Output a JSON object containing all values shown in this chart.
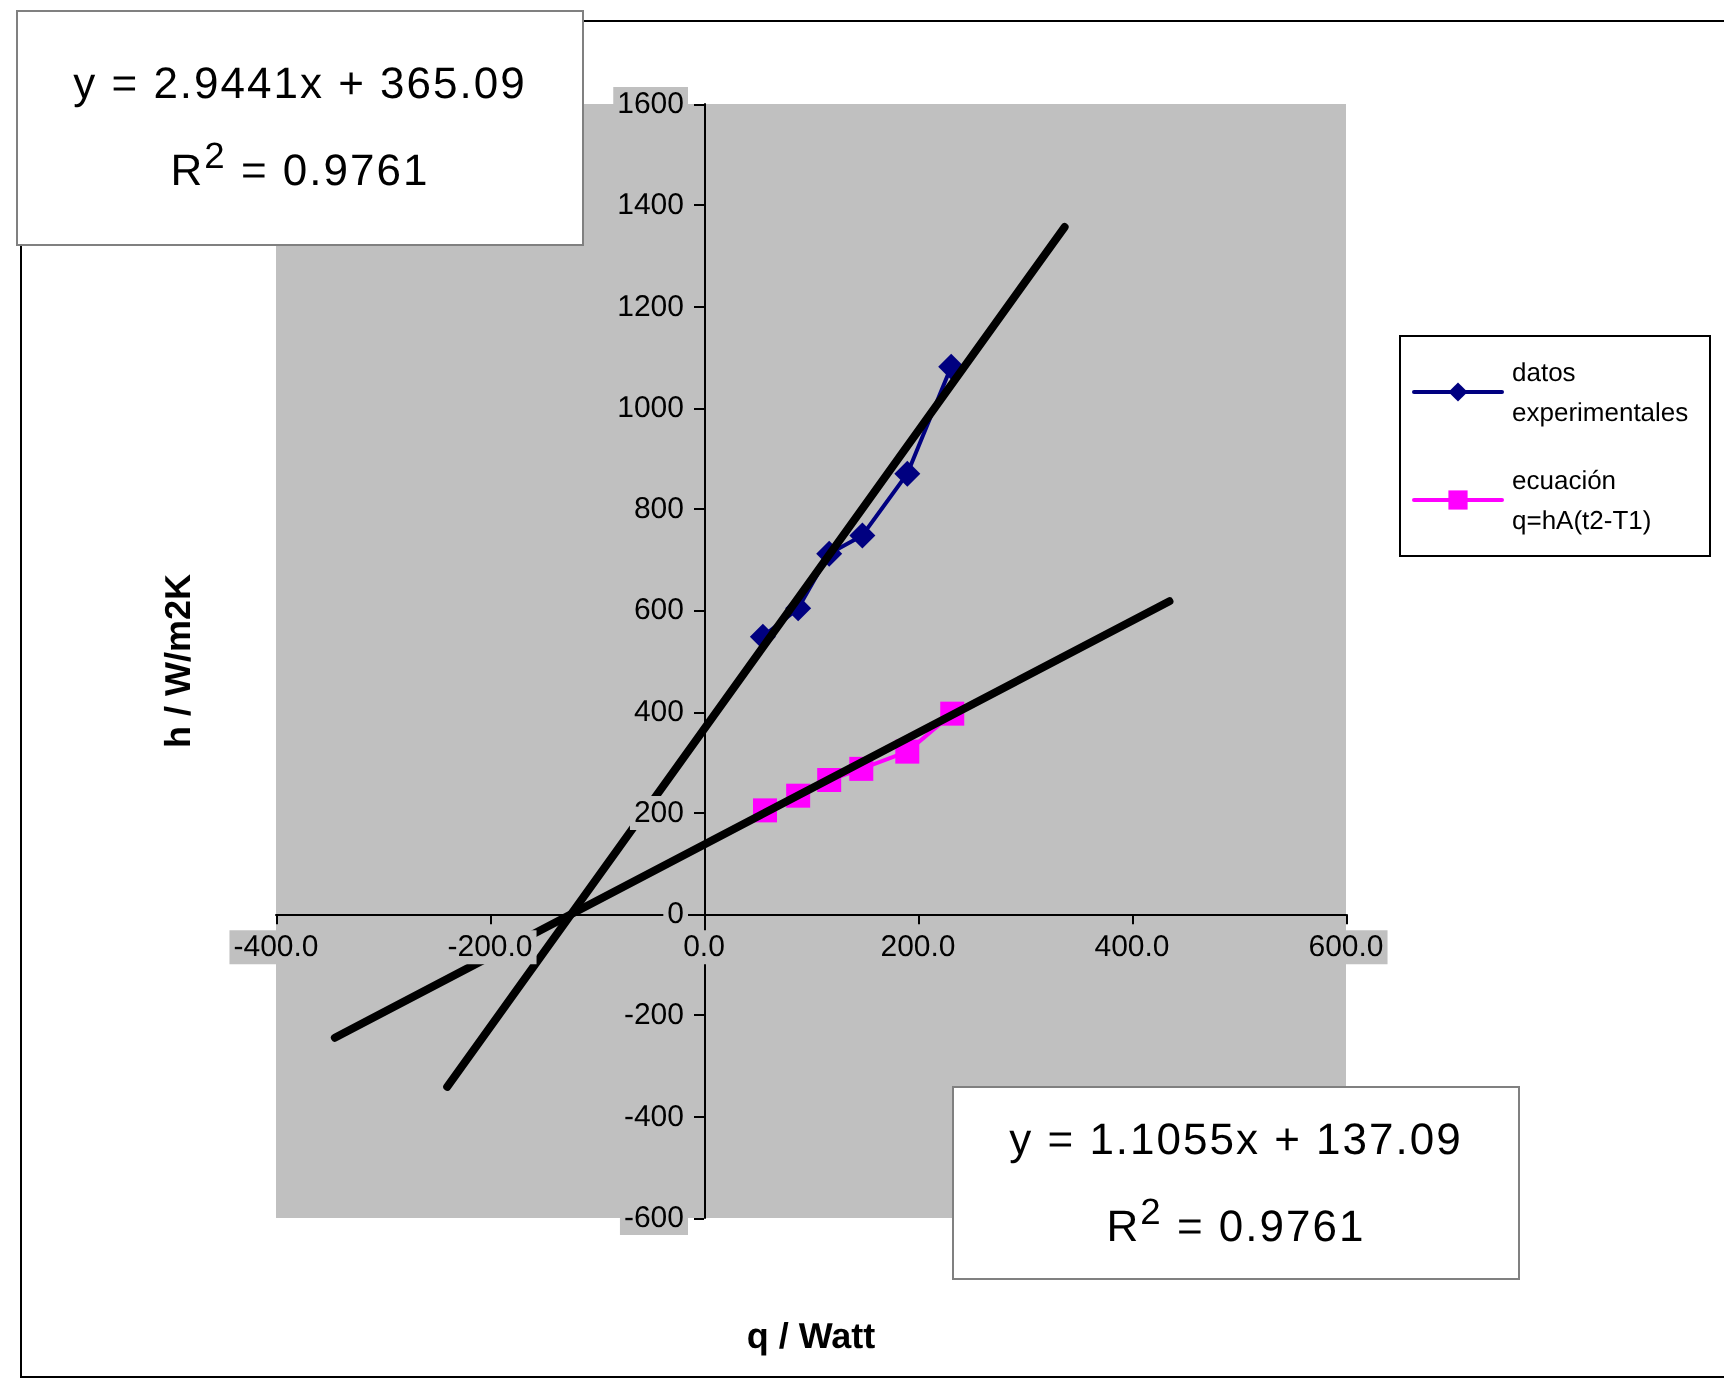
{
  "chart_data": {
    "type": "line",
    "xlabel": "q / Watt",
    "ylabel": "h / W/m2K",
    "xlim": [
      -400,
      600
    ],
    "xticks": [
      {
        "value": -400,
        "label": "-400.0"
      },
      {
        "value": -200,
        "label": "-200.0"
      },
      {
        "value": 0,
        "label": "0.0"
      },
      {
        "value": 200,
        "label": "200.0"
      },
      {
        "value": 400,
        "label": "400.0"
      },
      {
        "value": 600,
        "label": "600.0"
      }
    ],
    "ylim": [
      -600,
      1600
    ],
    "yticks": [
      -600,
      -400,
      -200,
      0,
      200,
      400,
      600,
      800,
      1000,
      1200,
      1400,
      1600
    ],
    "grid": false,
    "legend": "right",
    "series": [
      {
        "name": "datos experimentales",
        "color": "#000080",
        "marker": "diamond",
        "x": [
          55,
          88,
          117,
          148,
          190,
          231
        ],
        "values": [
          548,
          604,
          712,
          748,
          870,
          1081
        ]
      },
      {
        "name": "ecuación q=hA(t2-T1)",
        "color": "#ff00ff",
        "marker": "square",
        "x": [
          57,
          88,
          117,
          147,
          190,
          232
        ],
        "values": [
          205,
          234,
          265,
          287,
          321,
          396
        ]
      },
      {
        "color": "#000000",
        "marker": "none",
        "x": [
          -240,
          337
        ],
        "values": [
          -341,
          1357
        ]
      },
      {
        "color": "#000000",
        "marker": "none",
        "x": [
          -345,
          435
        ],
        "values": [
          -244,
          618
        ]
      }
    ],
    "annotations": [
      "y = 2.9441x + 365.09\nR$^{2}$ = 0.9761",
      "y = 1.1055x + 137.09\nR$^{2}$ = 0.9761"
    ]
  }
}
